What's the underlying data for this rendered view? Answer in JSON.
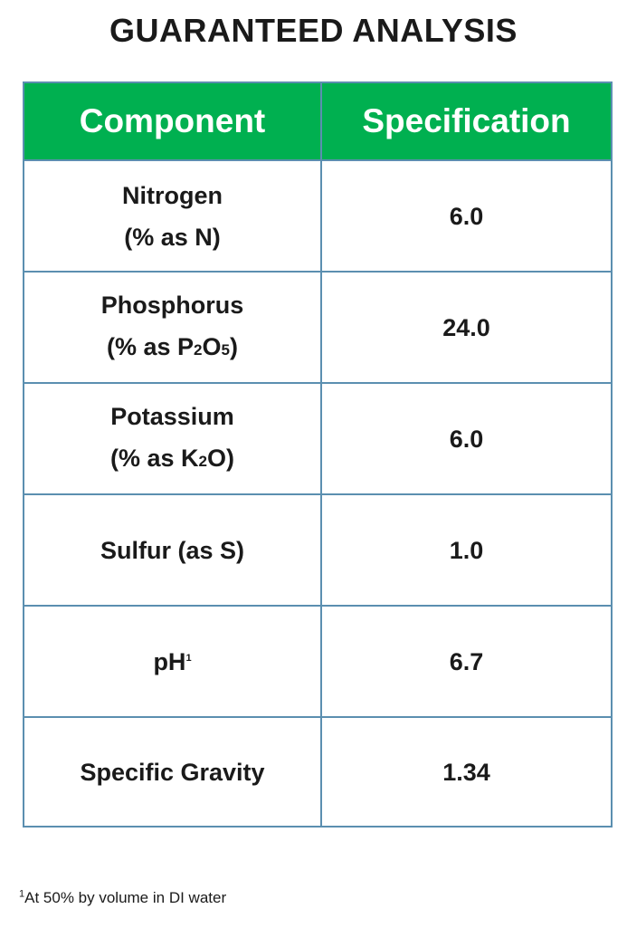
{
  "title": "GUARANTEED ANALYSIS",
  "table": {
    "headers": [
      "Component",
      "Specification"
    ],
    "rows": [
      {
        "line1": "Nitrogen",
        "line2": "(% as N)",
        "value": "6.0"
      },
      {
        "line1": "Phosphorus",
        "line2_pre": "(% as P",
        "sub1": "2",
        "mid": "O",
        "sub2": "5",
        "post": ")",
        "value": "24.0"
      },
      {
        "line1": "Potassium",
        "line2_pre": "(% as K",
        "sub1": "2",
        "post": "O)",
        "value": "6.0"
      },
      {
        "label": "Sulfur (as S)",
        "value": "1.0"
      },
      {
        "label": "pH",
        "marker": "1",
        "value": "6.7"
      },
      {
        "label": "Specific Gravity",
        "value": "1.34"
      }
    ]
  },
  "footnote": {
    "marker": "1",
    "text": "At 50% by volume in DI water"
  }
}
